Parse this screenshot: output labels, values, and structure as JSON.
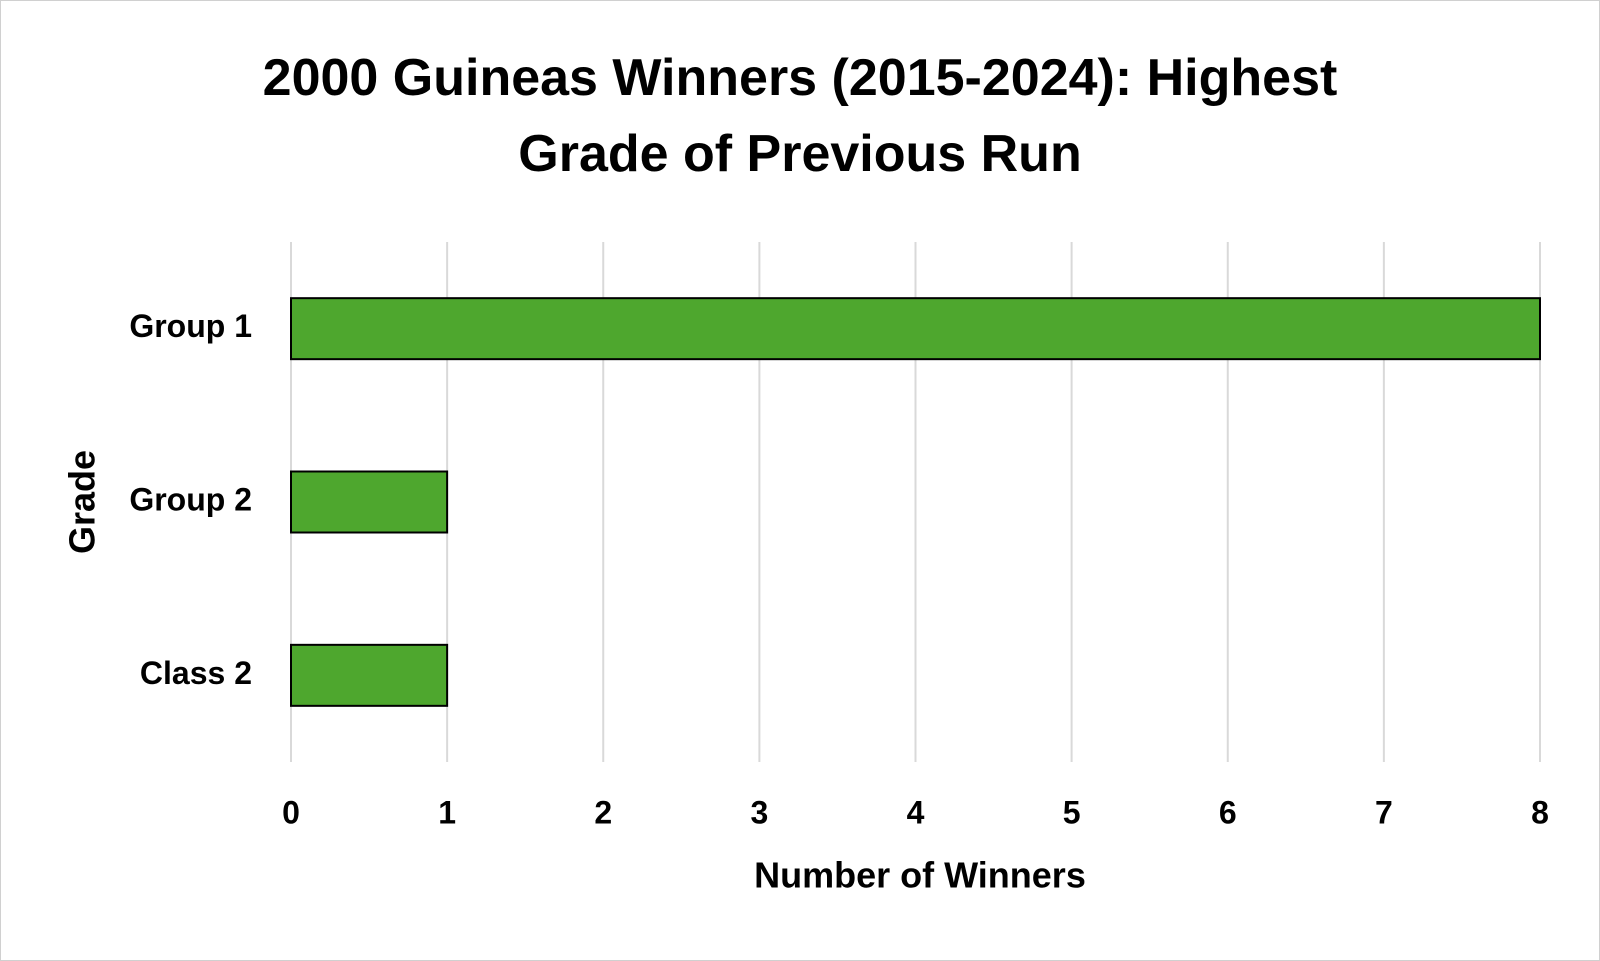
{
  "chart_data": {
    "type": "hbar",
    "title": "2000 Guineas Winners (2015-2024): Highest Grade of Previous Run",
    "x_label": "Number of Winners",
    "y_label": "Grade",
    "categories": [
      "Group 1",
      "Group 2",
      "Class 2"
    ],
    "values": [
      8,
      1,
      1
    ],
    "color": "#4ea72e",
    "xlim": [
      0,
      8
    ],
    "xticks": [
      0,
      1,
      2,
      3,
      4,
      5,
      6,
      7,
      8
    ],
    "grid": true
  }
}
